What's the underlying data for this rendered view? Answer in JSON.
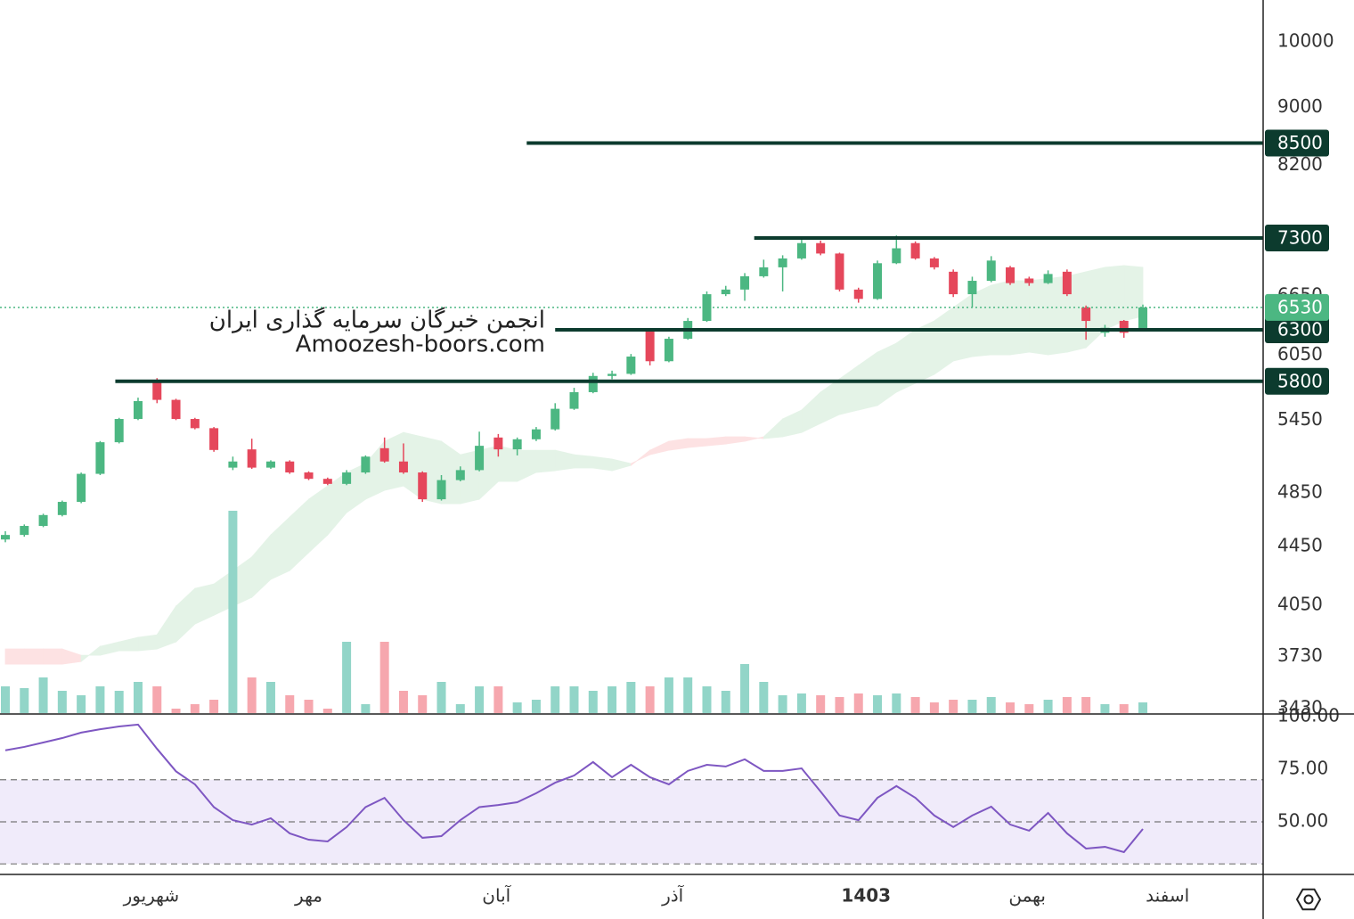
{
  "chart_data": {
    "type": "candlestick",
    "candles": [
      [
        4500,
        4560,
        4480,
        4533
      ],
      [
        4533,
        4610,
        4520,
        4599
      ],
      [
        4599,
        4690,
        4590,
        4680
      ],
      [
        4680,
        4790,
        4670,
        4780
      ],
      [
        4780,
        5010,
        4770,
        5000
      ],
      [
        5000,
        5270,
        4990,
        5260
      ],
      [
        5260,
        5470,
        5250,
        5460
      ],
      [
        5460,
        5650,
        5450,
        5619
      ],
      [
        5800,
        5830,
        5600,
        5630
      ],
      [
        5630,
        5640,
        5450,
        5460
      ],
      [
        5460,
        5470,
        5370,
        5380
      ],
      [
        5380,
        5390,
        5180,
        5195
      ],
      [
        5050,
        5140,
        5030,
        5100
      ],
      [
        5200,
        5290,
        5040,
        5050
      ],
      [
        5050,
        5110,
        5040,
        5100
      ],
      [
        5100,
        5110,
        5000,
        5011
      ],
      [
        5011,
        5020,
        4950,
        4960
      ],
      [
        4960,
        4970,
        4910,
        4920
      ],
      [
        4920,
        5030,
        4910,
        5011
      ],
      [
        5011,
        5150,
        5000,
        5140
      ],
      [
        5210,
        5300,
        5090,
        5100
      ],
      [
        5100,
        5250,
        5000,
        5011
      ],
      [
        5011,
        5020,
        4780,
        4800
      ],
      [
        4800,
        4990,
        4790,
        4950
      ],
      [
        4950,
        5060,
        4940,
        5030
      ],
      [
        5030,
        5350,
        5020,
        5230
      ],
      [
        5300,
        5330,
        5140,
        5200
      ],
      [
        5200,
        5300,
        5150,
        5285
      ],
      [
        5285,
        5390,
        5270,
        5370
      ],
      [
        5370,
        5600,
        5360,
        5550
      ],
      [
        5550,
        5740,
        5540,
        5700
      ],
      [
        5700,
        5880,
        5690,
        5850
      ],
      [
        5850,
        5900,
        5820,
        5870
      ],
      [
        5870,
        6060,
        5860,
        6035
      ],
      [
        6300,
        6310,
        5950,
        5990
      ],
      [
        5990,
        6230,
        5980,
        6210
      ],
      [
        6210,
        6420,
        6200,
        6390
      ],
      [
        6390,
        6700,
        6380,
        6670
      ],
      [
        6670,
        6760,
        6650,
        6720
      ],
      [
        6720,
        6900,
        6600,
        6865
      ],
      [
        6865,
        7050,
        6850,
        6964
      ],
      [
        6964,
        7100,
        6700,
        7064
      ],
      [
        7064,
        7290,
        7050,
        7240
      ],
      [
        7240,
        7270,
        7100,
        7120
      ],
      [
        7120,
        7130,
        6700,
        6720
      ],
      [
        6720,
        6740,
        6580,
        6620
      ],
      [
        6620,
        7040,
        6610,
        7010
      ],
      [
        7010,
        7330,
        7000,
        7180
      ],
      [
        7240,
        7260,
        7050,
        7064
      ],
      [
        7064,
        7080,
        6940,
        6964
      ],
      [
        6915,
        6940,
        6640,
        6670
      ],
      [
        6670,
        6860,
        6530,
        6815
      ],
      [
        6815,
        7090,
        6800,
        7040
      ],
      [
        6964,
        6980,
        6770,
        6790
      ],
      [
        6840,
        6860,
        6760,
        6790
      ],
      [
        6790,
        6930,
        6780,
        6890
      ],
      [
        6915,
        6940,
        6650,
        6670
      ],
      [
        6530,
        6550,
        6200,
        6390
      ],
      [
        6270,
        6350,
        6230,
        6320
      ],
      [
        6391,
        6400,
        6220,
        6270
      ],
      [
        6300,
        6560,
        6290,
        6530
      ]
    ],
    "up_color": "#4cb782",
    "down_color": "#e5475b",
    "volume": [
      30,
      28,
      40,
      25,
      20,
      30,
      25,
      35,
      30,
      5,
      10,
      15,
      227,
      40,
      35,
      20,
      15,
      5,
      80,
      10,
      80,
      25,
      20,
      35,
      10,
      30,
      30,
      12,
      15,
      30,
      30,
      25,
      30,
      35,
      30,
      40,
      40,
      30,
      25,
      55,
      35,
      20,
      22,
      20,
      18,
      22,
      20,
      22,
      18,
      12,
      15,
      15,
      18,
      12,
      10,
      15,
      18,
      18,
      10,
      10,
      12
    ],
    "volume_up_color": "#92d5c8",
    "volume_down_color": "#f6a7ae",
    "cloud": {
      "span_a": [
        3684,
        3684,
        3684,
        3684,
        3700,
        3791,
        3818,
        3846,
        3862,
        4043,
        4160,
        4190,
        4281,
        4375,
        4533,
        4665,
        4800,
        4904,
        5011,
        5083,
        5268,
        5343,
        5306,
        5268,
        5156,
        5193,
        5230,
        5193,
        5193,
        5193,
        5156,
        5140,
        5120,
        5083,
        5156,
        5193,
        5215,
        5230,
        5245,
        5268,
        5306,
        5460,
        5539,
        5700,
        5823,
        5950,
        6078,
        6166,
        6300,
        6391,
        6530,
        6671,
        6767,
        6816,
        6816,
        6840,
        6865,
        6915,
        6964,
        6984,
        6964
      ],
      "span_b": [
        3775,
        3775,
        3775,
        3775,
        3737,
        3737,
        3764,
        3764,
        3775,
        3818,
        3929,
        3985,
        4043,
        4101,
        4221,
        4281,
        4406,
        4533,
        4698,
        4800,
        4869,
        4904,
        4800,
        4766,
        4766,
        4800,
        4939,
        4939,
        5011,
        5025,
        5047,
        5047,
        5025,
        5068,
        5193,
        5268,
        5291,
        5291,
        5306,
        5306,
        5291,
        5306,
        5343,
        5421,
        5499,
        5539,
        5579,
        5700,
        5782,
        5865,
        5992,
        6035,
        6052,
        6052,
        6078,
        6052,
        6078,
        6122,
        6300,
        6391,
        6437
      ],
      "up_color": "#e4f3e7",
      "down_color": "#fde2e3"
    },
    "ylim": [
      3406,
      10694
    ],
    "log_scale": true,
    "yticks": [
      10000,
      9000,
      8200,
      7300,
      6650,
      6050,
      5450,
      4850,
      4450,
      4050,
      3730,
      3430
    ],
    "levels": [
      {
        "value": 8500,
        "start": 27.5
      },
      {
        "value": 7300,
        "start": 39.5
      },
      {
        "value": 6300,
        "start": 29
      },
      {
        "value": 5800,
        "start": 5.8
      }
    ],
    "level_color": "#0c3b2e",
    "last_price": {
      "value": 6530,
      "color": "#4cb782"
    },
    "time_labels": [
      {
        "at": 7.7,
        "label": "شهریور"
      },
      {
        "at": 16,
        "label": "مهر"
      },
      {
        "at": 25.9,
        "label": "آبان"
      },
      {
        "at": 35.2,
        "label": "آذر"
      },
      {
        "at": 45.4,
        "label": "1403",
        "bold": true
      },
      {
        "at": 53.9,
        "label": "بهمن"
      },
      {
        "at": 61.3,
        "label": "اسفند"
      }
    ],
    "watermark": [
      "انجمن خبرگان سرمایه گذاری ایران",
      "Amoozesh-boors.com"
    ],
    "rsi": {
      "values": [
        84,
        85.6,
        87.7,
        89.8,
        92.4,
        94,
        95.3,
        96.2,
        84.7,
        74,
        67.8,
        57,
        50.8,
        48.7,
        51.7,
        44.5,
        41.5,
        40.7,
        47.5,
        57,
        61.4,
        50.8,
        42.4,
        43.2,
        50.8,
        57,
        58,
        59.3,
        63.6,
        68.6,
        72,
        78.4,
        71.2,
        77.1,
        71.2,
        67.8,
        74.2,
        77.1,
        76.3,
        79.7,
        74.2,
        74.2,
        75.4,
        64.4,
        53,
        50.8,
        61.4,
        67,
        61.4,
        53,
        47.5,
        53,
        57.2,
        48.7,
        45.8,
        54.2,
        44.5,
        37.3,
        38.1,
        35.6,
        46.6
      ],
      "color": "#7e57c2",
      "ylim": [
        25,
        100.4
      ],
      "yticks": [
        {
          "value": 100,
          "label": "100.00"
        },
        {
          "value": 75,
          "label": "75.00"
        },
        {
          "value": 50,
          "label": "50.00"
        }
      ],
      "bands": [
        30,
        50,
        70
      ],
      "band_color": "#f0ebfa"
    }
  }
}
